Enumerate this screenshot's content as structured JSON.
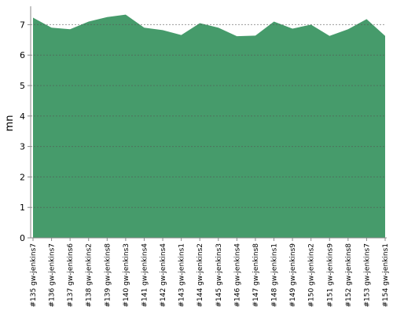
{
  "chart_data": {
    "type": "area",
    "y_label": "mn",
    "categories": [
      "#135 gw-jenkins7",
      "#136 gw-jenkins7",
      "#137 gw-jenkins6",
      "#138 gw-jenkins2",
      "#139 gw-jenkins8",
      "#140 gw-jenkins3",
      "#141 gw-jenkins4",
      "#142 gw-jenkins4",
      "#143 gw-jenkins1",
      "#144 gw-jenkins2",
      "#145 gw-jenkins3",
      "#146 gw-jenkins4",
      "#147 gw-jenkins8",
      "#148 gw-jenkins1",
      "#149 gw-jenkins9",
      "#150 gw-jenkins2",
      "#151 gw-jenkins9",
      "#152 gw-jenkins8",
      "#153 gw-jenkins7",
      "#154 gw-jenkins1"
    ],
    "values": [
      7.23,
      6.9,
      6.85,
      7.1,
      7.25,
      7.33,
      6.9,
      6.82,
      6.66,
      7.05,
      6.9,
      6.62,
      6.64,
      7.1,
      6.87,
      7.0,
      6.63,
      6.85,
      7.18,
      6.63
    ],
    "color": "#469b6b",
    "ylim": [
      0,
      7.5
    ],
    "yticks": [
      0,
      1,
      2,
      3,
      4,
      5,
      6,
      7
    ],
    "grid": true
  }
}
